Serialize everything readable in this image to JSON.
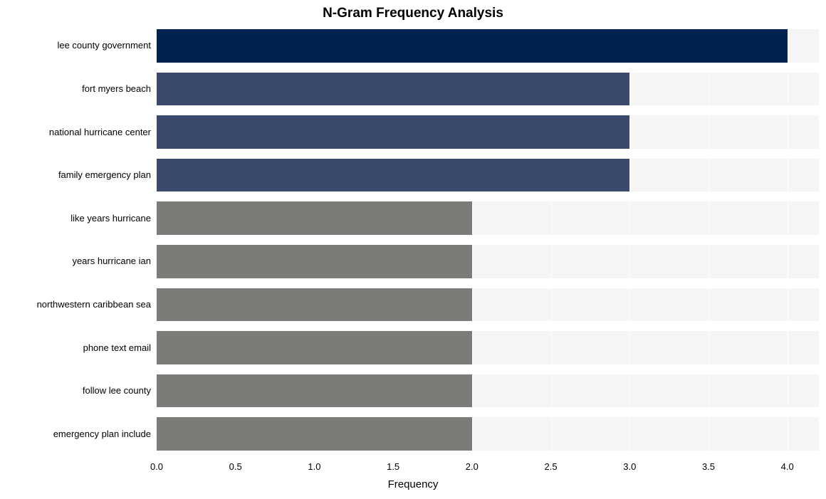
{
  "chart": {
    "type": "bar-horizontal",
    "title": "N-Gram Frequency Analysis",
    "title_fontsize": 19,
    "title_fontweight": "bold",
    "xlabel": "Frequency",
    "label_fontsize": 15,
    "background_color": "#ffffff",
    "plot_background": "#f5f5f5",
    "grid_color": "#ffffff",
    "tick_fontsize": 13,
    "xlim": [
      0.0,
      4.2
    ],
    "xtick_step": 0.5,
    "xticks": [
      "0.0",
      "0.5",
      "1.0",
      "1.5",
      "2.0",
      "2.5",
      "3.0",
      "3.5",
      "4.0"
    ],
    "bar_height_ratio": 0.77,
    "categories": [
      "lee county government",
      "fort myers beach",
      "national hurricane center",
      "family emergency plan",
      "like years hurricane",
      "years hurricane ian",
      "northwestern caribbean sea",
      "phone text email",
      "follow lee county",
      "emergency plan include"
    ],
    "values": [
      4,
      3,
      3,
      3,
      2,
      2,
      2,
      2,
      2,
      2
    ],
    "bar_colors": [
      "#00224e",
      "#3b496c",
      "#3b496c",
      "#3b496c",
      "#7c7b78",
      "#7c7b78",
      "#7c7b78",
      "#7c7b78",
      "#7c7b78",
      "#7c7b78"
    ]
  }
}
